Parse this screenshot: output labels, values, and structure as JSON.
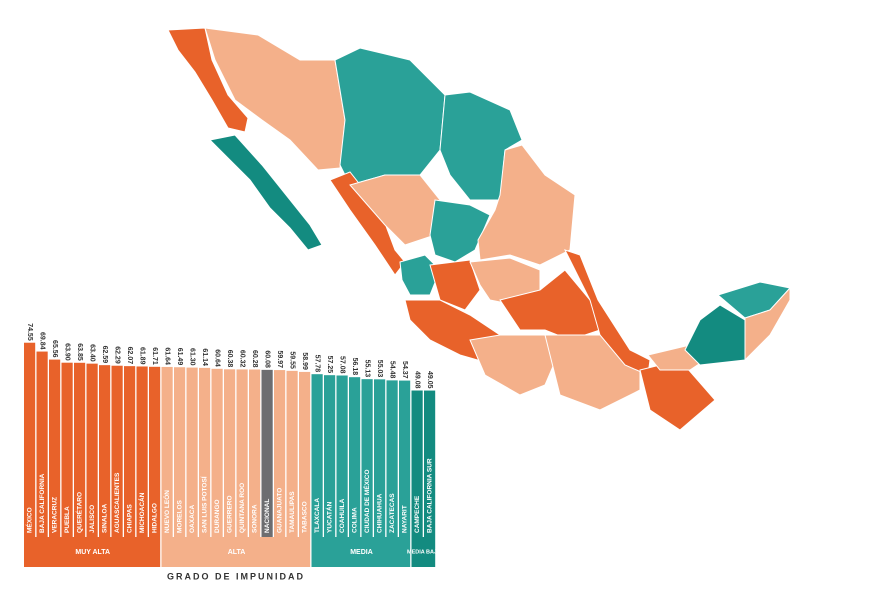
{
  "chart_data": {
    "type": "bar",
    "x_label": "GRADO DE IMPUNIDAD",
    "ylim": [
      -29,
      76
    ],
    "series": [
      {
        "name": "MUY ALTA",
        "color": "#e8622a",
        "categories": [
          "MÉXICO",
          "BAJA CALIFORNIA",
          "VERACRUZ",
          "PUEBLA",
          "QUERÉTARO",
          "JALISCO",
          "SINALOA",
          "AGUASCALIENTES",
          "CHIAPAS",
          "MICHOACÁN",
          "HIDALGO"
        ],
        "values": [
          74.55,
          69.84,
          65.56,
          63.9,
          63.85,
          63.4,
          62.59,
          62.29,
          62.07,
          61.89,
          61.71
        ],
        "value_labels": [
          "74.55",
          "69.84",
          "65.56",
          "63.90",
          "63.85",
          "63.40",
          "62.59",
          "62.29",
          "62.07",
          "61.89",
          "61.71"
        ]
      },
      {
        "name": "ALTA",
        "color": "#f4b08a",
        "categories": [
          "NUEVO LEÓN",
          "MORELOS",
          "OAXACA",
          "SAN LUIS POTOSÍ",
          "DURANGO",
          "GUERRERO",
          "QUINTANA ROO",
          "SONORA",
          "NACIONAL",
          "GUANAJUATO",
          "TAMAULIPAS",
          "TABASCO"
        ],
        "values": [
          61.64,
          61.49,
          61.3,
          61.14,
          60.64,
          60.38,
          60.32,
          60.28,
          60.08,
          59.97,
          59.55,
          58.99
        ],
        "value_labels": [
          "61.64",
          "61.49",
          "61.30",
          "61.14",
          "60.64",
          "60.38",
          "60.32",
          "60.28",
          "60.08",
          "59.97",
          "59.55",
          "58.99"
        ],
        "colors": [
          "#f4b08a",
          "#f4b08a",
          "#f4b08a",
          "#f4b08a",
          "#f4b08a",
          "#f4b08a",
          "#f4b08a",
          "#f4b08a",
          "#6d6d70",
          "#f4b08a",
          "#f4b08a",
          "#f4b08a"
        ]
      },
      {
        "name": "MEDIA",
        "color": "#2aa198",
        "categories": [
          "TLAXCALA",
          "YUCATÁN",
          "COAHUILA",
          "COLIMA",
          "CIUDAD DE MÉXICO",
          "CHIHUAHUA",
          "ZACATECAS",
          "NAYARIT"
        ],
        "values": [
          57.78,
          57.25,
          57.08,
          56.18,
          55.13,
          55.03,
          54.48,
          54.37
        ],
        "value_labels": [
          "57.78",
          "57.25",
          "57.08",
          "56.18",
          "55.13",
          "55.03",
          "54.48",
          "54.37"
        ]
      },
      {
        "name": "MEDIA BAJA",
        "color": "#138b80",
        "categories": [
          "CAMPECHE",
          "BAJA CALIFORNIA SUR"
        ],
        "values": [
          49.08,
          49.05
        ],
        "value_labels": [
          "49.08",
          "49.05"
        ]
      }
    ]
  }
}
